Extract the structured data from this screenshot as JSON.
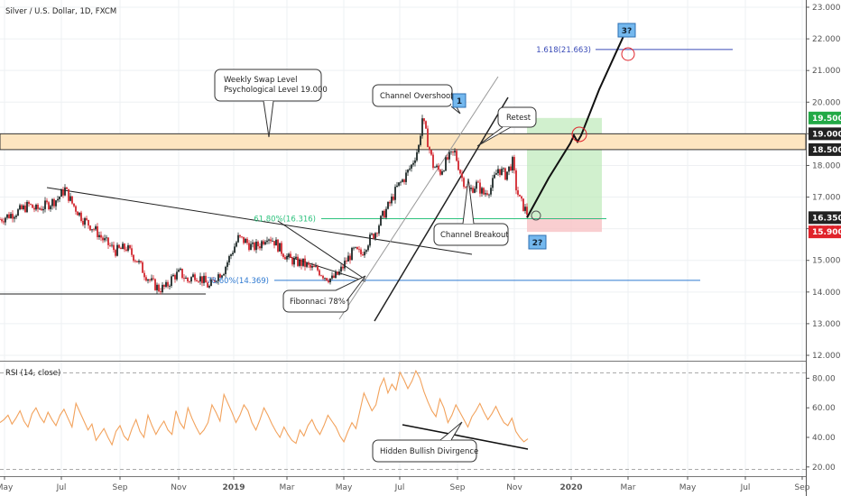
{
  "chart_data": [
    {
      "type": "candlestick",
      "title": "Silver / U.S. Dollar, 1D, FXCM",
      "y_ticks": [
        "12.000",
        "13.000",
        "14.000",
        "15.000",
        "16.000",
        "17.000",
        "18.000",
        "19.000",
        "20.000",
        "21.000",
        "22.000",
        "23.000"
      ],
      "ylim": [
        12,
        23.1
      ],
      "x_ticks": [
        "May",
        "Jul",
        "Sep",
        "Nov",
        "2019",
        "Mar",
        "May",
        "Jul",
        "Sep",
        "Nov",
        "2020",
        "Mar",
        "May",
        "Jul",
        "Sep"
      ],
      "price_badges": [
        {
          "label": "19.500",
          "value": 19.5,
          "color": "#22a946"
        },
        {
          "label": "19.000",
          "value": 19.0,
          "color": "#222222"
        },
        {
          "label": "18.500",
          "value": 18.5,
          "color": "#222222"
        },
        {
          "label": "16.350",
          "value": 16.35,
          "color": "#222222"
        },
        {
          "label": "15.900",
          "value": 15.9,
          "color": "#e0232b"
        }
      ],
      "price_path": [
        [
          0,
          16.3
        ],
        [
          3,
          16.45
        ],
        [
          6,
          16.6
        ],
        [
          8,
          16.75
        ],
        [
          10,
          16.6
        ],
        [
          13,
          16.75
        ],
        [
          16,
          16.95
        ],
        [
          18,
          17.25
        ],
        [
          20,
          16.8
        ],
        [
          23,
          16.3
        ],
        [
          26,
          16.0
        ],
        [
          29,
          15.6
        ],
        [
          32,
          15.3
        ],
        [
          35,
          15.4
        ],
        [
          38,
          15.0
        ],
        [
          40,
          14.6
        ],
        [
          42,
          14.3
        ],
        [
          44,
          14.1
        ],
        [
          46,
          14.15
        ],
        [
          48,
          14.5
        ],
        [
          50,
          14.6
        ],
        [
          52,
          14.35
        ],
        [
          54,
          14.55
        ],
        [
          56,
          14.4
        ],
        [
          58,
          14.15
        ],
        [
          60,
          14.5
        ],
        [
          62,
          14.7
        ],
        [
          64,
          15.2
        ],
        [
          66,
          15.7
        ],
        [
          68,
          15.6
        ],
        [
          70,
          15.4
        ],
        [
          72,
          15.5
        ],
        [
          74,
          15.8
        ],
        [
          76,
          15.6
        ],
        [
          78,
          15.3
        ],
        [
          80,
          15.05
        ],
        [
          82,
          14.95
        ],
        [
          84,
          14.9
        ],
        [
          86,
          14.75
        ],
        [
          88,
          14.7
        ],
        [
          90,
          14.5
        ],
        [
          92,
          14.4
        ],
        [
          94,
          14.6
        ],
        [
          96,
          15.0
        ],
        [
          98,
          15.3
        ],
        [
          100,
          15.2
        ],
        [
          102,
          15.6
        ],
        [
          104,
          15.9
        ],
        [
          106,
          16.4
        ],
        [
          108,
          16.8
        ],
        [
          110,
          17.3
        ],
        [
          112,
          17.6
        ],
        [
          114,
          18.0
        ],
        [
          116,
          18.6
        ],
        [
          117,
          19.5
        ],
        [
          118,
          19.0
        ],
        [
          120,
          18.0
        ],
        [
          122,
          17.8
        ],
        [
          124,
          18.2
        ],
        [
          126,
          18.4
        ],
        [
          128,
          17.6
        ],
        [
          130,
          17.2
        ],
        [
          132,
          17.4
        ],
        [
          134,
          17.1
        ],
        [
          136,
          17.3
        ],
        [
          138,
          17.9
        ],
        [
          140,
          17.7
        ],
        [
          142,
          18.1
        ],
        [
          143,
          17.3
        ],
        [
          144,
          16.9
        ],
        [
          145,
          16.7
        ],
        [
          146,
          16.5
        ]
      ],
      "projection_path": [
        [
          146,
          16.35
        ],
        [
          152,
          17.6
        ],
        [
          158,
          18.7
        ],
        [
          159,
          18.95
        ],
        [
          160,
          18.75
        ],
        [
          161,
          18.95
        ],
        [
          166,
          20.4
        ],
        [
          174,
          22.4
        ]
      ],
      "levels": [
        {
          "label": "1.618(21.663)",
          "value": 21.663,
          "color": "#3b4cb8"
        },
        {
          "label": "61.80%(16.316)",
          "value": 16.316,
          "color": "#2ec27e"
        },
        {
          "label": "78.60%(14.369)",
          "value": 14.369,
          "color": "#2f7ad1"
        }
      ],
      "zone": {
        "from": 18.5,
        "to": 19.0
      },
      "annotations": [
        {
          "label": "Weekly Swap Level"
        },
        {
          "label": "Psychological Level 19.000"
        },
        {
          "label": "Channel Overshoot"
        },
        {
          "label": "Retest"
        },
        {
          "label": "Channel Breakout"
        },
        {
          "label": "Fibonnaci 78%"
        }
      ],
      "markers": [
        "1",
        "2?",
        "3?"
      ],
      "trade": {
        "entry": 16.35,
        "target": 19.5,
        "stop": 15.9
      }
    },
    {
      "type": "line",
      "title": "RSI (14, close)",
      "y_ticks": [
        "20.00",
        "40.00",
        "60.00",
        "80.00"
      ],
      "ylim": [
        15,
        90
      ],
      "series": [
        {
          "values": [
            50,
            52,
            55,
            49,
            53,
            58,
            51,
            47,
            56,
            60,
            54,
            50,
            57,
            52,
            48,
            55,
            59,
            53,
            47,
            63,
            57,
            51,
            45,
            49,
            38,
            42,
            46,
            40,
            35,
            44,
            48,
            41,
            38,
            46,
            52,
            44,
            40,
            55,
            48,
            42,
            47,
            51,
            45,
            42,
            58,
            50,
            46,
            60,
            53,
            47,
            42,
            45,
            50,
            62,
            57,
            51,
            69,
            63,
            57,
            50,
            55,
            62,
            58,
            50,
            45,
            52,
            60,
            55,
            49,
            44,
            40,
            47,
            42,
            38,
            36,
            45,
            41,
            48,
            52,
            46,
            42,
            48,
            55,
            51,
            47,
            41,
            37,
            44,
            50,
            46,
            58,
            70,
            64,
            58,
            62,
            74,
            80,
            70,
            76,
            72,
            84,
            79,
            73,
            78,
            85,
            80,
            71,
            64,
            58,
            54,
            66,
            60,
            50,
            55,
            62,
            57,
            52,
            47,
            54,
            58,
            63,
            57,
            52,
            56,
            61,
            55,
            50,
            48,
            53,
            44,
            40,
            37,
            39
          ]
        }
      ],
      "divergence_label": "Hidden Bullish Divirgence"
    }
  ]
}
